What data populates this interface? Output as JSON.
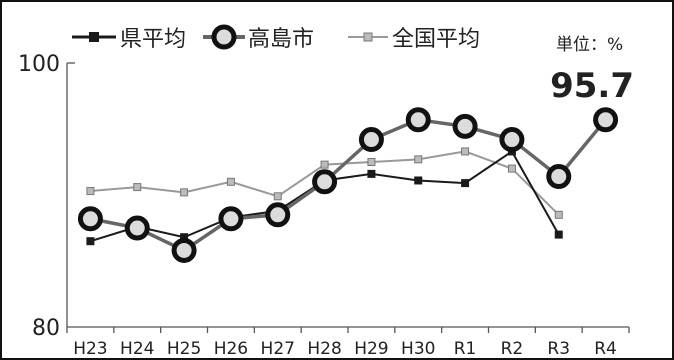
{
  "unit_label": "単位：%",
  "callout_value": "95.7",
  "colors": {
    "prefecture": "#1a1a1a",
    "takashima": "#666666",
    "national": "#999999",
    "marker_fill": "#dcdcdc",
    "frame": "#111111"
  },
  "chart_data": {
    "type": "line",
    "categories": [
      "H23",
      "H24",
      "H25",
      "H26",
      "H27",
      "H28",
      "H29",
      "H30",
      "R1",
      "R2",
      "R3",
      "R4"
    ],
    "ylim": [
      80,
      100
    ],
    "y_ticks": [
      "100",
      "80"
    ],
    "legend_position": "top",
    "grid": false,
    "series": [
      {
        "name": "県平均",
        "key": "prefecture",
        "marker": "small-square-black",
        "values": [
          86.5,
          87.6,
          86.8,
          88.3,
          88.8,
          91.1,
          91.6,
          91.1,
          90.9,
          93.3,
          87.0,
          null
        ]
      },
      {
        "name": "高島市",
        "key": "takashima",
        "marker": "large-ring",
        "values": [
          88.2,
          87.5,
          85.8,
          88.2,
          88.5,
          91.0,
          94.2,
          95.7,
          95.2,
          94.2,
          91.4,
          95.7
        ]
      },
      {
        "name": "全国平均",
        "key": "national",
        "marker": "small-square-gray",
        "values": [
          90.3,
          90.6,
          90.2,
          91.0,
          89.9,
          92.3,
          92.5,
          92.7,
          93.3,
          92.0,
          88.5,
          null
        ]
      }
    ]
  }
}
